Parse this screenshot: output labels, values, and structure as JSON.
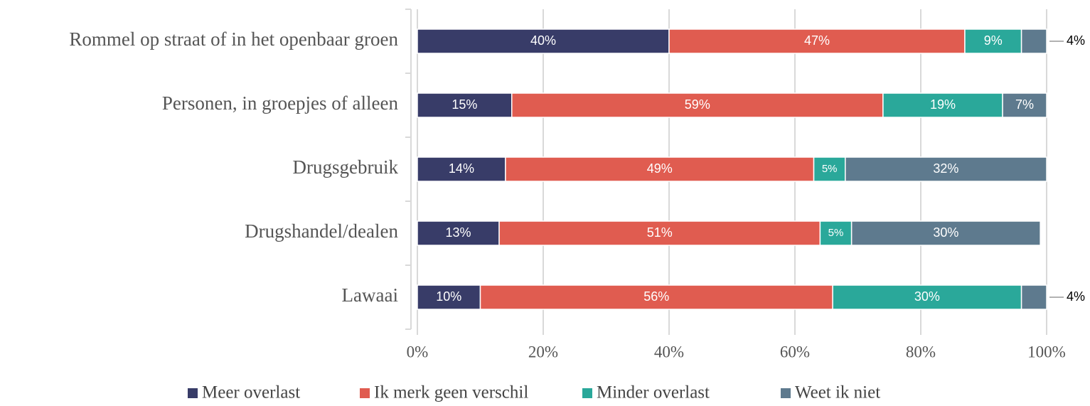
{
  "chart_data": {
    "type": "stacked-barh",
    "categories": [
      "Rommel op straat of in het openbaar groen",
      "Personen, in groepjes of alleen",
      "Drugsgebruik",
      "Drugshandel/dealen",
      "Lawaai"
    ],
    "series": [
      {
        "name": "Meer overlast",
        "color": "#383c68",
        "values": [
          40,
          15,
          14,
          13,
          10
        ],
        "value_labels": [
          "40%",
          "15%",
          "14%",
          "13%",
          "10%"
        ]
      },
      {
        "name": "Ik merk geen verschil",
        "color": "#e05c50",
        "values": [
          47,
          59,
          49,
          51,
          56
        ],
        "value_labels": [
          "47%",
          "59%",
          "49%",
          "51%",
          "56%"
        ]
      },
      {
        "name": "Minder overlast",
        "color": "#2aa89a",
        "values": [
          9,
          19,
          5,
          5,
          30
        ],
        "value_labels": [
          "9%",
          "19%",
          "5%",
          "5%",
          "30%"
        ]
      },
      {
        "name": "Weet ik niet",
        "color": "#5e7a8e",
        "values": [
          4,
          7,
          32,
          30,
          4
        ],
        "value_labels": [
          "4%",
          "7%",
          "32%",
          "30%",
          "4%"
        ]
      }
    ],
    "xlim": [
      0,
      100
    ],
    "xticks": [
      {
        "value": 0,
        "label": "0%"
      },
      {
        "value": 20,
        "label": "20%"
      },
      {
        "value": 40,
        "label": "40%"
      },
      {
        "value": 60,
        "label": "60%"
      },
      {
        "value": 80,
        "label": "80%"
      },
      {
        "value": 100,
        "label": "100%"
      }
    ],
    "grid": true
  }
}
